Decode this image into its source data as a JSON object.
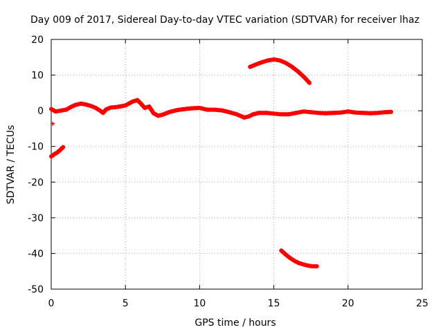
{
  "chart_data": {
    "type": "scatter",
    "title": "Day 009 of 2017, Sidereal Day-to-day VTEC variation (SDTVAR) for receiver lhaz",
    "xlabel": "GPS time / hours",
    "ylabel": "SDTVAR / TECUs",
    "xlim": [
      0,
      25
    ],
    "ylim": [
      -50,
      20
    ],
    "xticks": [
      0,
      5,
      10,
      15,
      20,
      25
    ],
    "yticks": [
      -50,
      -40,
      -30,
      -20,
      -10,
      0,
      10,
      20
    ],
    "grid": true,
    "marker_color": "#ff0000",
    "series": [
      {
        "name": "main-track",
        "points": [
          [
            0.0,
            0.5
          ],
          [
            0.3,
            -0.2
          ],
          [
            0.6,
            0.0
          ],
          [
            1.0,
            0.3
          ],
          [
            1.3,
            1.0
          ],
          [
            1.6,
            1.6
          ],
          [
            2.0,
            2.0
          ],
          [
            2.3,
            1.8
          ],
          [
            2.7,
            1.3
          ],
          [
            3.0,
            0.8
          ],
          [
            3.3,
            0.0
          ],
          [
            3.5,
            -0.6
          ],
          [
            3.7,
            0.4
          ],
          [
            4.0,
            0.9
          ],
          [
            4.5,
            1.1
          ],
          [
            5.0,
            1.5
          ],
          [
            5.5,
            2.6
          ],
          [
            5.8,
            3.0
          ],
          [
            6.0,
            2.2
          ],
          [
            6.3,
            0.8
          ],
          [
            6.6,
            1.2
          ],
          [
            6.9,
            -0.7
          ],
          [
            7.2,
            -1.4
          ],
          [
            7.5,
            -1.1
          ],
          [
            8.0,
            -0.3
          ],
          [
            8.5,
            0.2
          ],
          [
            9.0,
            0.5
          ],
          [
            9.5,
            0.7
          ],
          [
            10.0,
            0.8
          ],
          [
            10.5,
            0.3
          ],
          [
            11.0,
            0.3
          ],
          [
            11.5,
            0.1
          ],
          [
            12.0,
            -0.4
          ],
          [
            12.5,
            -1.0
          ],
          [
            13.0,
            -1.9
          ],
          [
            13.3,
            -1.6
          ],
          [
            13.6,
            -1.0
          ],
          [
            14.0,
            -0.6
          ],
          [
            14.5,
            -0.6
          ],
          [
            15.0,
            -0.8
          ],
          [
            15.5,
            -1.0
          ],
          [
            16.0,
            -1.0
          ],
          [
            16.5,
            -0.6
          ],
          [
            17.0,
            -0.2
          ],
          [
            17.5,
            -0.4
          ],
          [
            18.0,
            -0.6
          ],
          [
            18.5,
            -0.7
          ],
          [
            19.0,
            -0.6
          ],
          [
            19.5,
            -0.5
          ],
          [
            20.0,
            -0.2
          ],
          [
            20.5,
            -0.5
          ],
          [
            21.0,
            -0.6
          ],
          [
            21.5,
            -0.7
          ],
          [
            22.0,
            -0.6
          ],
          [
            22.5,
            -0.4
          ],
          [
            22.9,
            -0.3
          ]
        ]
      },
      {
        "name": "upper-arc",
        "points": [
          [
            13.4,
            12.3
          ],
          [
            13.8,
            13.0
          ],
          [
            14.2,
            13.6
          ],
          [
            14.6,
            14.1
          ],
          [
            15.0,
            14.4
          ],
          [
            15.4,
            14.1
          ],
          [
            15.8,
            13.4
          ],
          [
            16.2,
            12.4
          ],
          [
            16.6,
            11.1
          ],
          [
            17.0,
            9.6
          ],
          [
            17.4,
            7.8
          ]
        ]
      },
      {
        "name": "lower-arc",
        "points": [
          [
            15.5,
            -39.2
          ],
          [
            15.8,
            -40.3
          ],
          [
            16.1,
            -41.3
          ],
          [
            16.4,
            -42.1
          ],
          [
            16.7,
            -42.7
          ],
          [
            17.0,
            -43.1
          ],
          [
            17.3,
            -43.4
          ],
          [
            17.6,
            -43.6
          ],
          [
            17.9,
            -43.6
          ]
        ]
      },
      {
        "name": "start-segment",
        "points": [
          [
            0.0,
            -12.8
          ],
          [
            0.2,
            -12.2
          ],
          [
            0.4,
            -11.7
          ],
          [
            0.6,
            -11.0
          ],
          [
            0.8,
            -10.2
          ]
        ]
      },
      {
        "name": "outlier",
        "points": [
          [
            0.1,
            -3.6
          ]
        ]
      }
    ]
  }
}
